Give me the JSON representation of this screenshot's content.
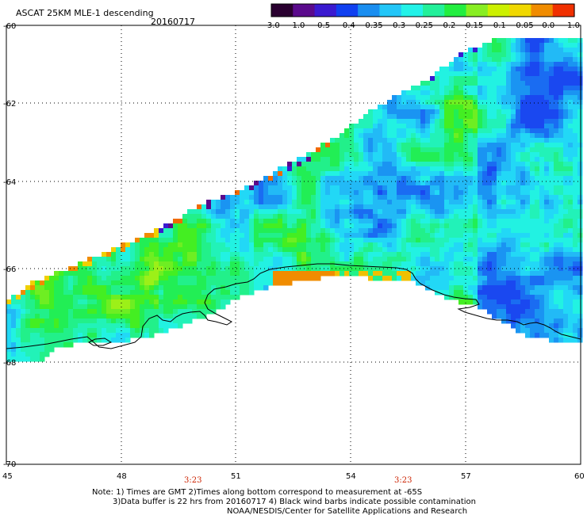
{
  "header": {
    "title": "ASCAT 25KM MLE-1 descending",
    "date": "20160717"
  },
  "colorbar": {
    "colors": [
      "#2a0030",
      "#5a0a8c",
      "#3a1ad0",
      "#1040f0",
      "#1a8ef0",
      "#22c6f8",
      "#22f2e8",
      "#22f09a",
      "#22ee40",
      "#88ee22",
      "#ccf000",
      "#f0d800",
      "#f08c00",
      "#f03000"
    ],
    "labels": [
      "-3.0",
      "-1.0",
      "-0.5",
      "-0.4",
      "-0.35",
      "-0.3",
      "-0.25",
      "-0.2",
      "-0.15",
      "-0.1",
      "-0.05",
      "0.0",
      "1.0"
    ]
  },
  "axes": {
    "lon_labels": [
      "45",
      "48",
      "51",
      "54",
      "57",
      "60"
    ],
    "lat_labels": [
      "-60",
      "-62",
      "-64",
      "-66",
      "-68",
      "-70"
    ],
    "times": [
      "3:23",
      "3:23"
    ]
  },
  "notes": {
    "line1": "Note: 1) Times are GMT 2)Times along bottom correspond to measurement at -65S",
    "line2": "3)Data buffer is 22 hrs from 20160717 4) Black wind barbs indicate possible contamination",
    "line3": "NOAA/NESDIS/Center for Satellite Applications and Research"
  }
}
